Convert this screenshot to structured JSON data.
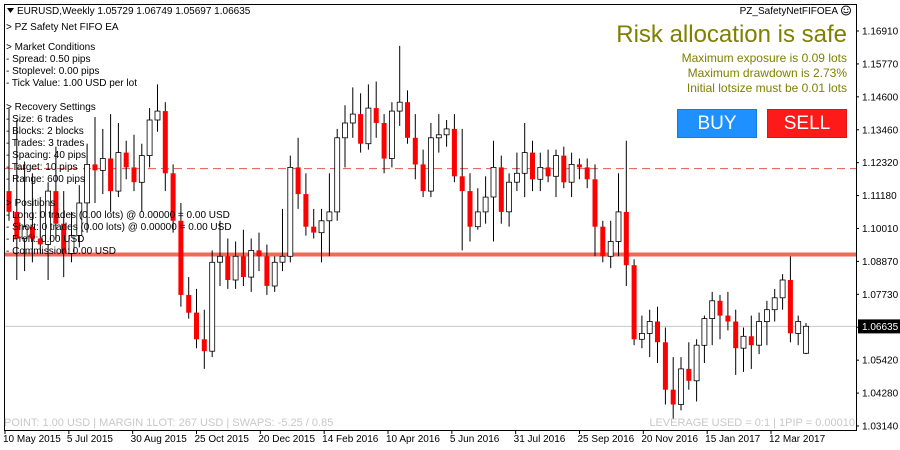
{
  "header": {
    "symbol_info": "EURUSD,Weekly  1.05729 1.06749 1.05697 1.06635",
    "ea_name": "PZ_SafetyNetFIFOEA",
    "ea_title": "> PZ Safety Net FIFO EA"
  },
  "info_panel": {
    "lines": [
      "> Market Conditions",
      "- Spread: 0.50 pips",
      "- Stoplevel: 0.00 pips",
      "- Tick Value: 1.00 USD per lot",
      "",
      "> Recovery Settings",
      "- Size: 6 trades",
      "- Blocks: 2 blocks",
      "- Trades: 3 trades",
      "- Spacing: 40 pips",
      "- Target: 10 pips",
      "- Range: 600 pips",
      "",
      "> Positions",
      "- Long: 0 trades (0.00 lots) @ 0.00000 = 0.00 USD",
      "- Short: 0 trades (0.00 lots) @ 0.00000 = 0.00 USD",
      "- Profit: 0.00 USD",
      "- Commission: 0.00 USD"
    ]
  },
  "risk_panel": {
    "headline": "Risk allocation is safe",
    "lines": [
      "Maximum exposure is 0.09 lots",
      "Maximum drawdown is 2.73%",
      "Initial lotsize must be 0.01 lots"
    ],
    "headline_color": "#808000"
  },
  "buttons": {
    "buy_label": "BUY",
    "sell_label": "SELL",
    "buy_color": "#1e90ff",
    "sell_color": "#ff1a1a"
  },
  "footer": {
    "left": "POINT: 1.00 USD | MARGIN 1LOT: 267 USD | SWAPS: -5.25 / 0.85",
    "right": "LEVERAGE USED = 0:1 | 1PIP = 0.00010"
  },
  "price_axis": {
    "ticks": [
      "1.16910",
      "1.15770",
      "1.14600",
      "1.13460",
      "1.12320",
      "1.11180",
      "1.10010",
      "1.08870",
      "1.07730",
      "1.06635",
      "1.05420",
      "1.04280",
      "1.03140"
    ],
    "current_price": "1.06635"
  },
  "time_axis": {
    "labels": [
      "10 May 2015",
      "5 Jul 2015",
      "30 Aug 2015",
      "25 Oct 2015",
      "20 Dec 2015",
      "14 Feb 2016",
      "10 Apr 2016",
      "5 Jun 2016",
      "31 Jul 2016",
      "25 Sep 2016",
      "20 Nov 2016",
      "15 Jan 2017",
      "12 Mar 2017"
    ]
  },
  "chart_data": {
    "type": "candlestick",
    "symbol": "EURUSD",
    "timeframe": "Weekly",
    "ylim": [
      1.0314,
      1.1748
    ],
    "levels": [
      {
        "price": 1.1196,
        "style": "dashed",
        "color": "#e05a4a"
      },
      {
        "price": 1.0906,
        "style": "solid",
        "color": "#f06a55"
      },
      {
        "price": 1.06635,
        "style": "solid",
        "color": "#c8c8c8"
      }
    ],
    "candles": [
      [
        1.112,
        1.14,
        1.102,
        1.105
      ],
      [
        1.105,
        1.136,
        1.082,
        1.096
      ],
      [
        1.096,
        1.122,
        1.085,
        1.1
      ],
      [
        1.1,
        1.118,
        1.088,
        1.096
      ],
      [
        1.096,
        1.11,
        1.091,
        1.094
      ],
      [
        1.094,
        1.115,
        1.082,
        1.112
      ],
      [
        1.112,
        1.127,
        1.096,
        1.101
      ],
      [
        1.101,
        1.112,
        1.083,
        1.091
      ],
      [
        1.091,
        1.105,
        1.088,
        1.097
      ],
      [
        1.097,
        1.114,
        1.093,
        1.108
      ],
      [
        1.108,
        1.128,
        1.098,
        1.121
      ],
      [
        1.121,
        1.137,
        1.108,
        1.119
      ],
      [
        1.119,
        1.133,
        1.111,
        1.123
      ],
      [
        1.123,
        1.138,
        1.105,
        1.112
      ],
      [
        1.112,
        1.135,
        1.11,
        1.125
      ],
      [
        1.125,
        1.129,
        1.116,
        1.12
      ],
      [
        1.12,
        1.131,
        1.112,
        1.115
      ],
      [
        1.115,
        1.128,
        1.105,
        1.124
      ],
      [
        1.124,
        1.14,
        1.12,
        1.136
      ],
      [
        1.136,
        1.148,
        1.132,
        1.139
      ],
      [
        1.139,
        1.142,
        1.112,
        1.118
      ],
      [
        1.118,
        1.121,
        1.098,
        1.102
      ],
      [
        1.102,
        1.108,
        1.073,
        1.077
      ],
      [
        1.077,
        1.083,
        1.069,
        1.071
      ],
      [
        1.071,
        1.079,
        1.059,
        1.062
      ],
      [
        1.062,
        1.072,
        1.052,
        1.058
      ],
      [
        1.058,
        1.092,
        1.056,
        1.088
      ],
      [
        1.088,
        1.102,
        1.08,
        1.09
      ],
      [
        1.09,
        1.096,
        1.079,
        1.082
      ],
      [
        1.082,
        1.095,
        1.079,
        1.09
      ],
      [
        1.09,
        1.099,
        1.08,
        1.083
      ],
      [
        1.083,
        1.096,
        1.078,
        1.092
      ],
      [
        1.092,
        1.098,
        1.085,
        1.09
      ],
      [
        1.09,
        1.094,
        1.077,
        1.08
      ],
      [
        1.08,
        1.09,
        1.078,
        1.088
      ],
      [
        1.088,
        1.106,
        1.085,
        1.09
      ],
      [
        1.09,
        1.124,
        1.088,
        1.12
      ],
      [
        1.12,
        1.13,
        1.106,
        1.111
      ],
      [
        1.111,
        1.118,
        1.097,
        1.1
      ],
      [
        1.1,
        1.106,
        1.096,
        1.098
      ],
      [
        1.098,
        1.106,
        1.088,
        1.102
      ],
      [
        1.102,
        1.118,
        1.09,
        1.105
      ],
      [
        1.105,
        1.133,
        1.102,
        1.13
      ],
      [
        1.13,
        1.141,
        1.12,
        1.135
      ],
      [
        1.135,
        1.147,
        1.13,
        1.138
      ],
      [
        1.138,
        1.145,
        1.125,
        1.128
      ],
      [
        1.128,
        1.148,
        1.126,
        1.14
      ],
      [
        1.14,
        1.149,
        1.13,
        1.135
      ],
      [
        1.135,
        1.138,
        1.118,
        1.123
      ],
      [
        1.123,
        1.142,
        1.12,
        1.139
      ],
      [
        1.139,
        1.161,
        1.134,
        1.142
      ],
      [
        1.142,
        1.146,
        1.128,
        1.13
      ],
      [
        1.13,
        1.138,
        1.116,
        1.121
      ],
      [
        1.121,
        1.126,
        1.11,
        1.112
      ],
      [
        1.112,
        1.135,
        1.11,
        1.13
      ],
      [
        1.13,
        1.138,
        1.125,
        1.131
      ],
      [
        1.131,
        1.136,
        1.127,
        1.133
      ],
      [
        1.133,
        1.138,
        1.115,
        1.117
      ],
      [
        1.117,
        1.133,
        1.092,
        1.112
      ],
      [
        1.112,
        1.118,
        1.095,
        1.1
      ],
      [
        1.1,
        1.113,
        1.099,
        1.105
      ],
      [
        1.105,
        1.117,
        1.101,
        1.11
      ],
      [
        1.11,
        1.129,
        1.095,
        1.12
      ],
      [
        1.12,
        1.124,
        1.101,
        1.105
      ],
      [
        1.105,
        1.118,
        1.1,
        1.115
      ],
      [
        1.115,
        1.125,
        1.112,
        1.118
      ],
      [
        1.118,
        1.135,
        1.11,
        1.125
      ],
      [
        1.125,
        1.129,
        1.112,
        1.116
      ],
      [
        1.116,
        1.125,
        1.112,
        1.12
      ],
      [
        1.12,
        1.126,
        1.115,
        1.117
      ],
      [
        1.117,
        1.126,
        1.11,
        1.124
      ],
      [
        1.124,
        1.127,
        1.113,
        1.115
      ],
      [
        1.115,
        1.125,
        1.11,
        1.121
      ],
      [
        1.121,
        1.123,
        1.116,
        1.12
      ],
      [
        1.12,
        1.123,
        1.113,
        1.116
      ],
      [
        1.116,
        1.121,
        1.09,
        1.1
      ],
      [
        1.1,
        1.102,
        1.088,
        1.09
      ],
      [
        1.09,
        1.102,
        1.086,
        1.095
      ],
      [
        1.095,
        1.118,
        1.09,
        1.105
      ],
      [
        1.105,
        1.129,
        1.08,
        1.087
      ],
      [
        1.087,
        1.089,
        1.06,
        1.062
      ],
      [
        1.062,
        1.07,
        1.059,
        1.064
      ],
      [
        1.064,
        1.072,
        1.056,
        1.068
      ],
      [
        1.068,
        1.073,
        1.054,
        1.061
      ],
      [
        1.061,
        1.066,
        1.04,
        1.045
      ],
      [
        1.045,
        1.056,
        1.035,
        1.04
      ],
      [
        1.04,
        1.056,
        1.038,
        1.052
      ],
      [
        1.052,
        1.061,
        1.045,
        1.048
      ],
      [
        1.048,
        1.062,
        1.041,
        1.06
      ],
      [
        1.06,
        1.07,
        1.054,
        1.069
      ],
      [
        1.069,
        1.078,
        1.06,
        1.075
      ],
      [
        1.075,
        1.077,
        1.062,
        1.07
      ],
      [
        1.07,
        1.078,
        1.065,
        1.068
      ],
      [
        1.068,
        1.072,
        1.05,
        1.059
      ],
      [
        1.059,
        1.066,
        1.051,
        1.063
      ],
      [
        1.063,
        1.07,
        1.052,
        1.06
      ],
      [
        1.06,
        1.071,
        1.057,
        1.068
      ],
      [
        1.068,
        1.075,
        1.06,
        1.072
      ],
      [
        1.072,
        1.079,
        1.068,
        1.076
      ],
      [
        1.076,
        1.084,
        1.072,
        1.082
      ],
      [
        1.082,
        1.09,
        1.061,
        1.064
      ],
      [
        1.064,
        1.07,
        1.06,
        1.068
      ],
      [
        1.0573,
        1.0675,
        1.057,
        1.0664
      ]
    ]
  }
}
